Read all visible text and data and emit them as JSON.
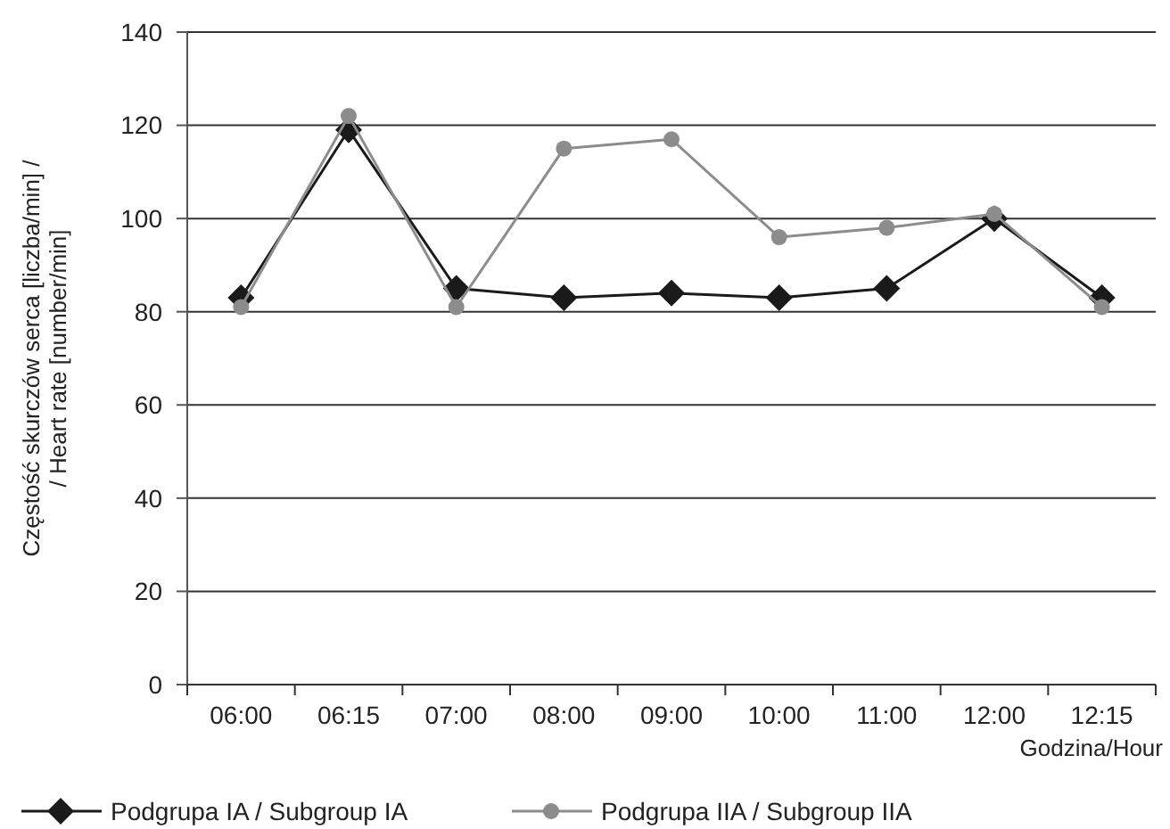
{
  "chart_data": {
    "type": "line",
    "xlabel": "Godzina/Hour",
    "ylabel": "Częstość skurczów serca [liczba/min] / / Heart rate [number/min]",
    "categories": [
      "06:00",
      "06:15",
      "07:00",
      "08:00",
      "09:00",
      "10:00",
      "11:00",
      "12:00",
      "12:15"
    ],
    "series": [
      {
        "name": "Podgrupa IA / Subgroup IA",
        "color": "#1a1a1a",
        "marker": "diamond",
        "values": [
          83,
          119,
          85,
          83,
          84,
          83,
          85,
          100,
          83
        ]
      },
      {
        "name": "Podgrupa IIA / Subgroup IIA",
        "color": "#8c8c8c",
        "marker": "circle",
        "values": [
          81,
          122,
          81,
          115,
          117,
          96,
          98,
          101,
          81
        ]
      }
    ],
    "ylim": [
      0,
      140
    ],
    "yticks": [
      0,
      20,
      40,
      60,
      80,
      100,
      120,
      140
    ],
    "grid": "y",
    "legend": "bottom"
  }
}
